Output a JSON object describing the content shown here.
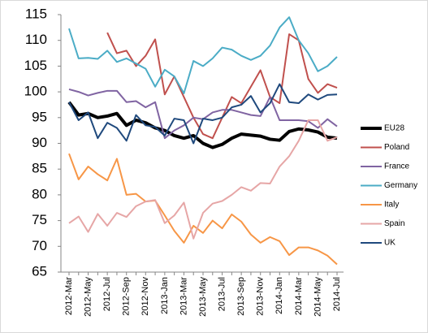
{
  "chart_data": {
    "type": "line",
    "categories": [
      "2012-Mar",
      null,
      "2012-May",
      null,
      "2012-Jul",
      null,
      "2012-Sep",
      null,
      "2012-Nov",
      null,
      "2013-Jan",
      null,
      "2013-Mar",
      null,
      "2013-May",
      null,
      "2013-Jul",
      null,
      "2013-Sep",
      null,
      "2013-Nov",
      null,
      "2014-Jan",
      null,
      "2014-Mar",
      null,
      "2014-May",
      null,
      "2014-Jul"
    ],
    "ylim": [
      65,
      115
    ],
    "yticks": [
      65,
      70,
      75,
      80,
      85,
      90,
      95,
      100,
      105,
      110,
      115
    ],
    "grid": false,
    "legend": "right",
    "series": [
      {
        "name": "EU28",
        "color": "#000000",
        "width": 4,
        "values": [
          98,
          95.5,
          95.8,
          95,
          95.3,
          95.8,
          93.5,
          94.5,
          94,
          93,
          92.5,
          91.5,
          91,
          91.5,
          90,
          89.2,
          89.8,
          91,
          91.8,
          91.6,
          91.4,
          90.8,
          90.6,
          92.3,
          92.8,
          92.6,
          92.2,
          91.2,
          91
        ]
      },
      {
        "name": "Poland",
        "color": "#c0504d",
        "width": 2,
        "values": [
          null,
          null,
          null,
          null,
          111.5,
          107.5,
          108,
          105,
          107,
          110.2,
          99.5,
          103,
          99,
          95,
          91.8,
          91,
          95,
          99,
          97.8,
          101,
          104.2,
          99,
          97.8,
          111.2,
          110,
          102.5,
          99.8,
          101.5,
          100.8
        ]
      },
      {
        "name": "France",
        "color": "#8064a2",
        "width": 2,
        "values": [
          100.5,
          100,
          99.3,
          99.8,
          100.2,
          100.2,
          98,
          98.2,
          97,
          98,
          91,
          92.5,
          93.5,
          95,
          94.7,
          96,
          96.5,
          96.5,
          96,
          95.5,
          95.3,
          99,
          94.5,
          94.5,
          94.5,
          94.3,
          93,
          94.7,
          93.3
        ]
      },
      {
        "name": "Germany",
        "color": "#4bacc6",
        "width": 2,
        "values": [
          112.3,
          106.5,
          106.6,
          106.4,
          108,
          105.8,
          106.5,
          105.5,
          104.5,
          101,
          104.3,
          103,
          99.7,
          106,
          105,
          106.5,
          108.6,
          108.2,
          107,
          106.2,
          107,
          109,
          112.5,
          114.5,
          110,
          107.5,
          104,
          105,
          106.8
        ]
      },
      {
        "name": "Italy",
        "color": "#f79646",
        "width": 2,
        "values": [
          88,
          83,
          85.5,
          84,
          82.8,
          87,
          80,
          80.2,
          78.7,
          78.9,
          76,
          73,
          70.7,
          74,
          72.6,
          75,
          73.5,
          76.2,
          74.8,
          72.3,
          70.7,
          71.8,
          71,
          68.3,
          69.8,
          69.8,
          69.2,
          68.2,
          66.5
        ]
      },
      {
        "name": "Spain",
        "color": "#e6a6a6",
        "width": 2,
        "values": [
          74.5,
          75.8,
          72.8,
          76.3,
          74,
          76.5,
          75.7,
          77.8,
          78.7,
          79,
          74.5,
          76,
          78.5,
          71.5,
          76.5,
          78.3,
          78.8,
          80,
          81.5,
          80.8,
          82.3,
          82.2,
          85.5,
          87.5,
          90.5,
          94.5,
          94.5,
          90.5,
          91.2
        ]
      },
      {
        "name": "UK",
        "color": "#1f497d",
        "width": 2,
        "values": [
          98,
          94.5,
          96,
          91,
          94,
          93,
          90.5,
          95.5,
          93.5,
          93.2,
          91.5,
          94.8,
          94.5,
          90,
          94.8,
          94.5,
          95,
          97,
          97.5,
          99.2,
          96,
          97.8,
          101.5,
          98,
          97.8,
          99.5,
          98.5,
          99.4,
          99.5
        ]
      }
    ]
  }
}
